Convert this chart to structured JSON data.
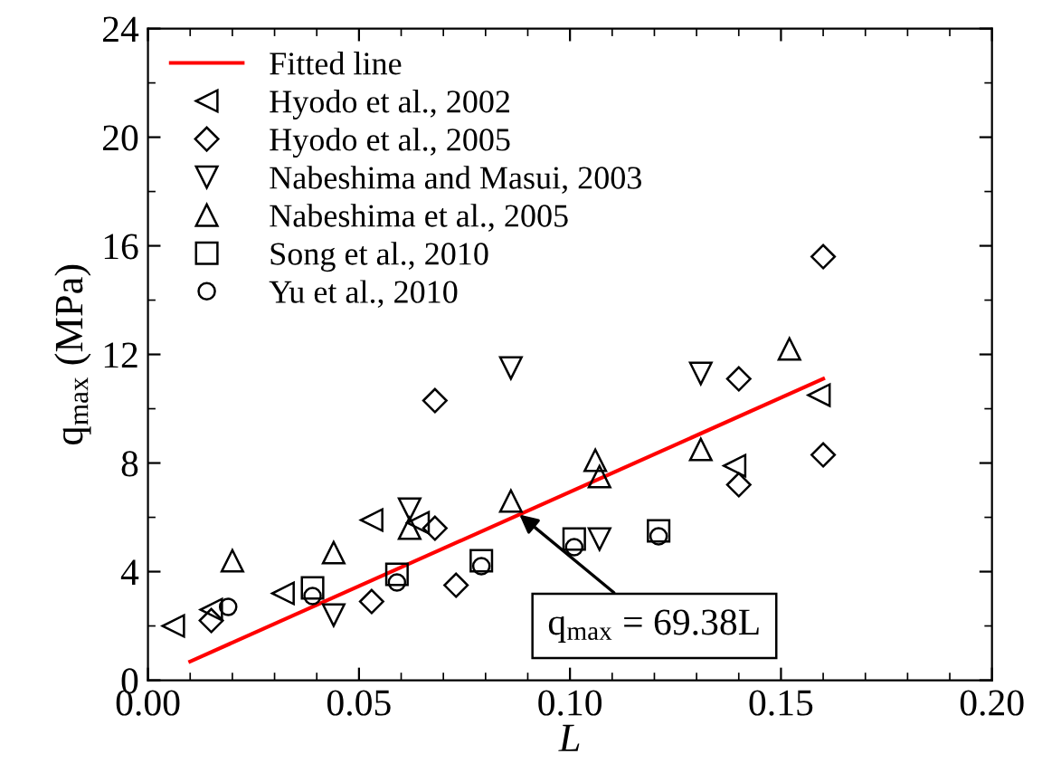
{
  "chart_data": {
    "type": "scatter",
    "xlabel": "L",
    "ylabel": "q$_{max}$ (MPa)",
    "xlim": [
      0,
      0.2
    ],
    "ylim": [
      0,
      24
    ],
    "xticks": [
      {
        "value": 0,
        "label": "0.00"
      },
      {
        "value": 0.05,
        "label": "0.05"
      },
      {
        "value": 0.1,
        "label": "0.10"
      },
      {
        "value": 0.15,
        "label": "0.15"
      },
      {
        "value": 0.2,
        "label": "0.20"
      }
    ],
    "yticks": [
      0,
      4,
      8,
      12,
      16,
      20,
      24
    ],
    "grid": false,
    "legend": "top left",
    "series": [
      {
        "name": "Fitted line",
        "type": "line",
        "color": "#ff0000",
        "marker": "none",
        "line_style": "solid",
        "x": [
          0.01,
          0.16
        ],
        "values": [
          0.69,
          11.1
        ]
      },
      {
        "name": "Hyodo et al., 2002",
        "color": "#000000",
        "marker": "triangle-left",
        "x": [
          0.006,
          0.015,
          0.032,
          0.053,
          0.064,
          0.139,
          0.159
        ],
        "values": [
          2.0,
          2.6,
          3.2,
          5.9,
          5.8,
          7.9,
          10.5
        ]
      },
      {
        "name": "Hyodo et al., 2005",
        "color": "#000000",
        "marker": "diamond",
        "x": [
          0.015,
          0.053,
          0.068,
          0.068,
          0.073,
          0.14,
          0.14,
          0.16,
          0.16
        ],
        "values": [
          2.2,
          2.9,
          10.3,
          5.6,
          3.5,
          11.1,
          7.2,
          8.3,
          15.6
        ]
      },
      {
        "name": "Nabeshima and Masui, 2003",
        "color": "#000000",
        "marker": "triangle-down",
        "x": [
          0.044,
          0.062,
          0.086,
          0.107,
          0.131
        ],
        "values": [
          2.4,
          6.3,
          11.5,
          5.2,
          11.3
        ]
      },
      {
        "name": "Nabeshima et al., 2005",
        "color": "#000000",
        "marker": "triangle",
        "x": [
          0.02,
          0.044,
          0.062,
          0.086,
          0.106,
          0.107,
          0.131,
          0.152
        ],
        "values": [
          4.4,
          4.7,
          5.6,
          6.6,
          8.1,
          7.5,
          8.5,
          12.2
        ]
      },
      {
        "name": "Song et al., 2010",
        "color": "#000000",
        "marker": "square",
        "x": [
          0.039,
          0.059,
          0.079,
          0.101,
          0.121
        ],
        "values": [
          3.4,
          3.9,
          4.4,
          5.2,
          5.5
        ]
      },
      {
        "name": "Yu et al., 2010",
        "color": "#000000",
        "marker": "circle",
        "x": [
          0.019,
          0.039,
          0.059,
          0.079,
          0.101,
          0.121
        ],
        "values": [
          2.7,
          3.1,
          3.6,
          4.2,
          4.9,
          5.3
        ]
      }
    ],
    "annotations": [
      {
        "text": "q$_{max}$ = 69.38L",
        "x": 0.088,
        "y": 6.1
      }
    ]
  }
}
